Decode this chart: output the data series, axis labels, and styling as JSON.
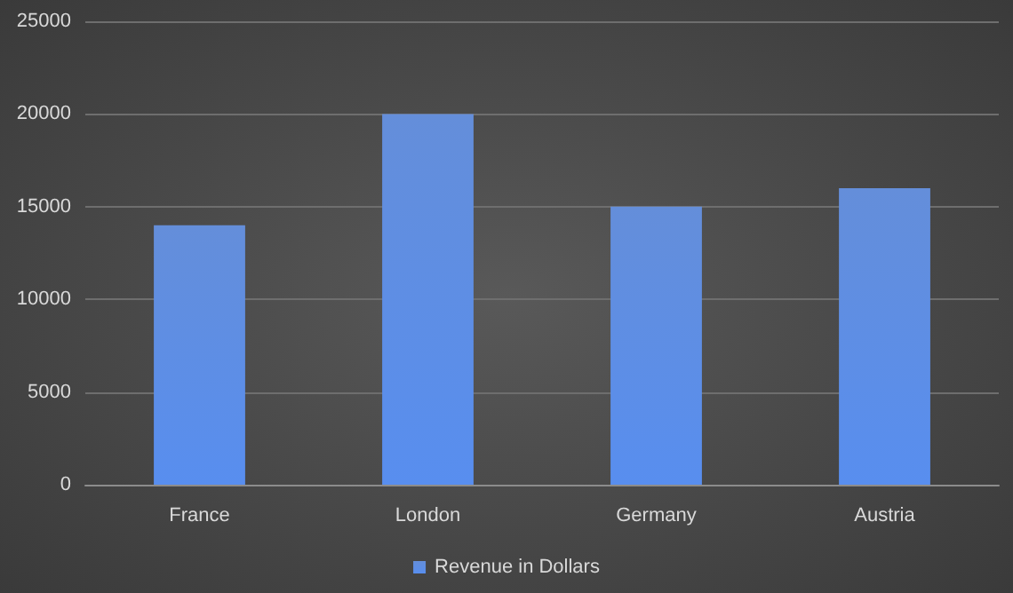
{
  "chart_data": {
    "type": "bar",
    "categories": [
      "France",
      "London",
      "Germany",
      "Austria"
    ],
    "series": [
      {
        "name": "Revenue in Dollars",
        "color": "#4f7fd6",
        "values": [
          14000,
          20000,
          15000,
          16000
        ]
      }
    ],
    "ylim": [
      0,
      25000
    ],
    "yticks": [
      0,
      5000,
      10000,
      15000,
      20000,
      25000
    ],
    "grid": "y",
    "legend": "bottom"
  }
}
